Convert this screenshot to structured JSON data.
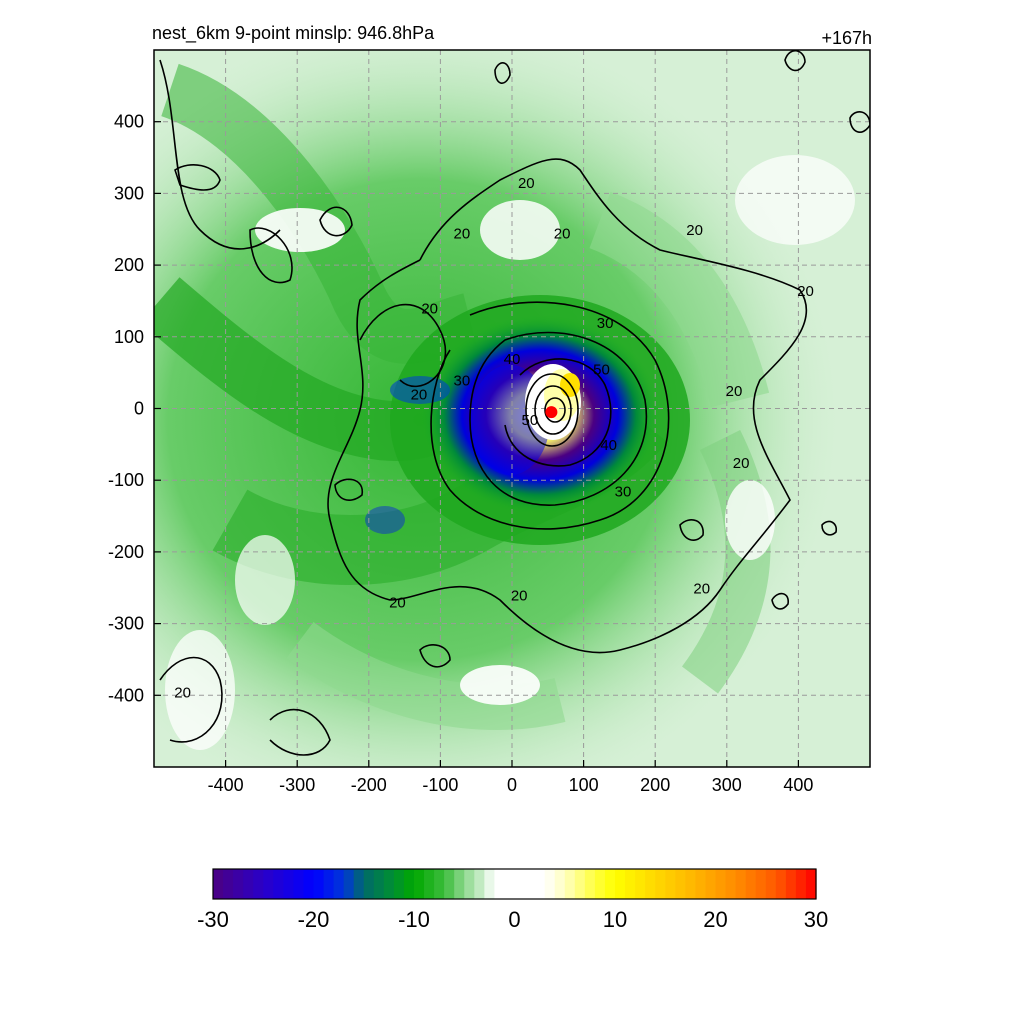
{
  "chart_data": {
    "type": "heatmap",
    "title": "nest_6km  9-point minslp: 946.8hPa",
    "subtitle_right": "+167h",
    "xlabel": "",
    "ylabel": "",
    "xlim": [
      -500,
      500
    ],
    "ylim": [
      -500,
      500
    ],
    "x_ticks": [
      "-400",
      "-300",
      "-200",
      "-100",
      "0",
      "100",
      "200",
      "300",
      "400"
    ],
    "y_ticks": [
      "400",
      "300",
      "200",
      "100",
      "0",
      "-100",
      "-200",
      "-300",
      "-400"
    ],
    "x_tick_values": [
      -400,
      -300,
      -200,
      -100,
      0,
      100,
      200,
      300,
      400
    ],
    "y_tick_values": [
      400,
      300,
      200,
      100,
      0,
      -100,
      -200,
      -300,
      -400
    ],
    "grid": true,
    "colorbar": {
      "placement": "bottom",
      "range": [
        -30,
        30
      ],
      "tick_labels": [
        "-30",
        "-20",
        "-10",
        "0",
        "10",
        "20",
        "30"
      ],
      "tick_values": [
        -30,
        -20,
        -10,
        0,
        10,
        20,
        30
      ],
      "colors": [
        "#4b0082",
        "#0000ff",
        "#00a000",
        "#ffffff",
        "#ffff00",
        "#ffa500",
        "#ff0000"
      ]
    },
    "center_marker": {
      "x": 55,
      "y": -5,
      "color": "#ff0000"
    },
    "contour_labels": [
      {
        "text": "20",
        "x": 20,
        "y": 310
      },
      {
        "text": "20",
        "x": -70,
        "y": 240
      },
      {
        "text": "20",
        "x": 70,
        "y": 240
      },
      {
        "text": "20",
        "x": 255,
        "y": 245
      },
      {
        "text": "20",
        "x": 410,
        "y": 160
      },
      {
        "text": "20",
        "x": -115,
        "y": 135
      },
      {
        "text": "20",
        "x": -130,
        "y": 15
      },
      {
        "text": "30",
        "x": -70,
        "y": 35
      },
      {
        "text": "30",
        "x": 130,
        "y": 115
      },
      {
        "text": "40",
        "x": 0,
        "y": 65
      },
      {
        "text": "50",
        "x": 125,
        "y": 50
      },
      {
        "text": "40",
        "x": 135,
        "y": -55
      },
      {
        "text": "30",
        "x": 155,
        "y": -120
      },
      {
        "text": "50",
        "x": 25,
        "y": -20
      },
      {
        "text": "20",
        "x": 310,
        "y": 20
      },
      {
        "text": "20",
        "x": 320,
        "y": -80
      },
      {
        "text": "20",
        "x": 265,
        "y": -255
      },
      {
        "text": "20",
        "x": -160,
        "y": -275
      },
      {
        "text": "20",
        "x": 10,
        "y": -265
      },
      {
        "text": "20",
        "x": -460,
        "y": -400
      }
    ],
    "contour_levels": [
      20,
      30,
      40,
      50
    ]
  }
}
